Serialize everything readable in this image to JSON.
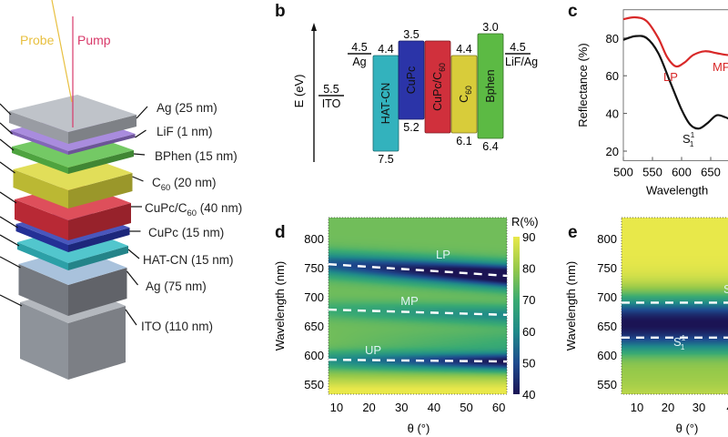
{
  "panel_labels": {
    "b": "b",
    "c": "c",
    "d": "d",
    "e": "e"
  },
  "panel_a": {
    "beams": {
      "probe": "Probe",
      "pump": "Pump",
      "probe_color": "#e8c040",
      "pump_color": "#d83a6a"
    },
    "layers": [
      {
        "label": "Ag (25 nm)",
        "color": "#b4b8c0"
      },
      {
        "label": "LiF (1 nm)",
        "color": "#9a78d8"
      },
      {
        "label": "BPhen (15 nm)",
        "color": "#5cc04a"
      },
      {
        "label": "C",
        "sub": "60",
        "after": " (20 nm)",
        "color": "#dcd83c"
      },
      {
        "label": "CuPc/C",
        "sub": "60",
        "after": " (40 nm)",
        "color": "#d8303e"
      },
      {
        "label": "CuPc (15 nm)",
        "color": "#2a38b0"
      },
      {
        "label": "HAT-CN (15 nm)",
        "color": "#34bcc4"
      },
      {
        "label": "Ag (75 nm)",
        "color": "#8a8e96"
      },
      {
        "label": "ITO (110 nm)",
        "color": "#9096a0"
      }
    ]
  },
  "panel_b": {
    "axis_label": "E (eV)",
    "electrodes": [
      {
        "value": "5.5",
        "name": "ITO"
      },
      {
        "value": "4.5",
        "name": "Ag"
      },
      {
        "value": "4.5",
        "name": "LiF/Ag"
      }
    ],
    "boxes": [
      {
        "name": "HAT-CN",
        "top": "4.4",
        "bottom": "7.5",
        "color": "#33b2bd"
      },
      {
        "name": "CuPc",
        "top": "3.5",
        "bottom": "5.2",
        "color": "#2b34a8"
      },
      {
        "name": "CuPc/C",
        "sub": "60",
        "top": "",
        "bottom": "",
        "color": "#d0303c"
      },
      {
        "name": "C",
        "sub": "60",
        "top": "4.4",
        "bottom": "6.1",
        "color": "#d8cc3a"
      },
      {
        "name": "Bphen",
        "top": "3.0",
        "bottom": "6.4",
        "color": "#5cba44"
      }
    ]
  },
  "chart_data": [
    {
      "panel": "c",
      "type": "line",
      "xlabel": "Wavelength",
      "ylabel": "Reflectance (%)",
      "xlim": [
        500,
        700
      ],
      "ylim": [
        15,
        95
      ],
      "xticks": [
        "500",
        "550",
        "600",
        "650"
      ],
      "yticks": [
        "20",
        "40",
        "60",
        "80"
      ],
      "series": [
        {
          "color": "#d82828",
          "x": [
            500,
            520,
            540,
            560,
            575,
            590,
            605,
            620,
            640,
            660,
            680,
            700
          ],
          "y": [
            90,
            91,
            89,
            80,
            70,
            65,
            67,
            71,
            73,
            72,
            71,
            72
          ]
        },
        {
          "color": "#111111",
          "x": [
            500,
            520,
            540,
            560,
            580,
            600,
            615,
            630,
            645,
            660,
            675,
            690,
            700
          ],
          "y": [
            79,
            81,
            80,
            72,
            57,
            42,
            34,
            32,
            35,
            39,
            38,
            36,
            37
          ]
        }
      ],
      "annotations": [
        {
          "text": "LP",
          "color": "#d82828"
        },
        {
          "text": "MP",
          "color": "#d82828"
        },
        {
          "text": "S",
          "sub": "1",
          "sup": "1",
          "color": "#111111"
        }
      ]
    },
    {
      "panel": "d",
      "type": "heatmap",
      "xlabel": "θ (°)",
      "ylabel": "Wavelength (nm)",
      "xlim": [
        7.5,
        62.5
      ],
      "ylim": [
        533,
        835
      ],
      "xticks": [
        "10",
        "20",
        "30",
        "40",
        "50",
        "60"
      ],
      "yticks": [
        "550",
        "600",
        "650",
        "700",
        "750",
        "800"
      ],
      "colorbar": {
        "label": "R(%)",
        "range": [
          40,
          90
        ],
        "ticks": [
          "40",
          "50",
          "60",
          "70",
          "80",
          "90"
        ]
      },
      "dashed_lines": [
        {
          "name": "LP",
          "theta": [
            7.5,
            62.5
          ],
          "wavelength": [
            756,
            736
          ]
        },
        {
          "name": "MP",
          "theta": [
            7.5,
            62.5
          ],
          "wavelength": [
            678,
            669
          ]
        },
        {
          "name": "UP",
          "theta": [
            7.5,
            62.5
          ],
          "wavelength": [
            592,
            589
          ]
        }
      ]
    },
    {
      "panel": "e",
      "type": "heatmap",
      "xlabel": "θ (°)",
      "ylabel": "Wavelength (nm)",
      "xlim": [
        5,
        45
      ],
      "ylim": [
        533,
        835
      ],
      "xticks": [
        "10",
        "20",
        "30",
        "4"
      ],
      "yticks": [
        "550",
        "600",
        "650",
        "700",
        "750",
        "800"
      ],
      "dashed_lines": [
        {
          "name": "S",
          "theta": [
            5,
            45
          ],
          "wavelength": [
            690,
            690
          ]
        },
        {
          "name": "S11",
          "theta": [
            5,
            45
          ],
          "wavelength": [
            630,
            630
          ]
        }
      ],
      "annotations": [
        {
          "text": "S",
          "sub": "1",
          "sup": "1"
        },
        {
          "text": "S"
        }
      ]
    }
  ],
  "colors": {
    "dashed": "#ffffff",
    "label_on_map": "#e0f4f4"
  }
}
